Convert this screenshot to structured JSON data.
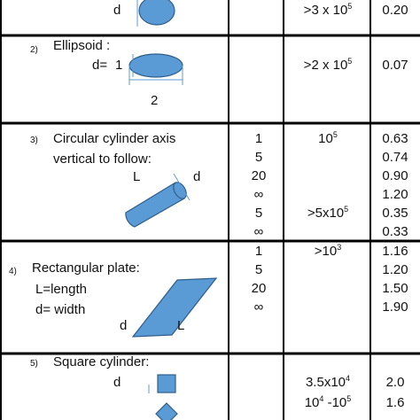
{
  "rows": [
    {
      "labels": [
        "d"
      ],
      "re": [
        [
          ">3 x 10",
          "5"
        ]
      ],
      "cd": [
        "0.20"
      ]
    },
    {
      "number": "2)",
      "title": [
        "Ellipsoid :"
      ],
      "labels": [
        "d=",
        "1",
        "2"
      ],
      "re": [
        [
          ">2 x 10",
          "5"
        ]
      ],
      "cd": [
        "0.07"
      ]
    },
    {
      "number": "3)",
      "title": [
        "Circular cylinder axis",
        "vertical to follow:"
      ],
      "labels": [
        "L",
        "d"
      ],
      "l_over_d": [
        "1",
        "5",
        "20",
        "∞",
        "5",
        "∞"
      ],
      "re": [
        [
          "10",
          "5"
        ],
        [
          ">5x10",
          "5"
        ]
      ],
      "cd": [
        "0.63",
        "0.74",
        "0.90",
        "1.20",
        "0.35",
        "0.33"
      ]
    },
    {
      "number": "4)",
      "title": [
        "Rectangular plate:",
        "L=length",
        "d= width"
      ],
      "labels": [
        "d",
        "L"
      ],
      "l_over_d": [
        "1",
        "5",
        "20",
        "∞"
      ],
      "re": [
        [
          ">10",
          "3"
        ]
      ],
      "cd": [
        "1.16",
        "1.20",
        "1.50",
        "1.90"
      ]
    },
    {
      "number": "5)",
      "title": [
        "Square cylinder:"
      ],
      "labels": [
        "d"
      ],
      "re": [
        [
          "3.5x10",
          "4"
        ],
        [
          "10",
          "4",
          " -10",
          "5"
        ]
      ],
      "cd": [
        "2.0",
        "1.6"
      ]
    }
  ]
}
